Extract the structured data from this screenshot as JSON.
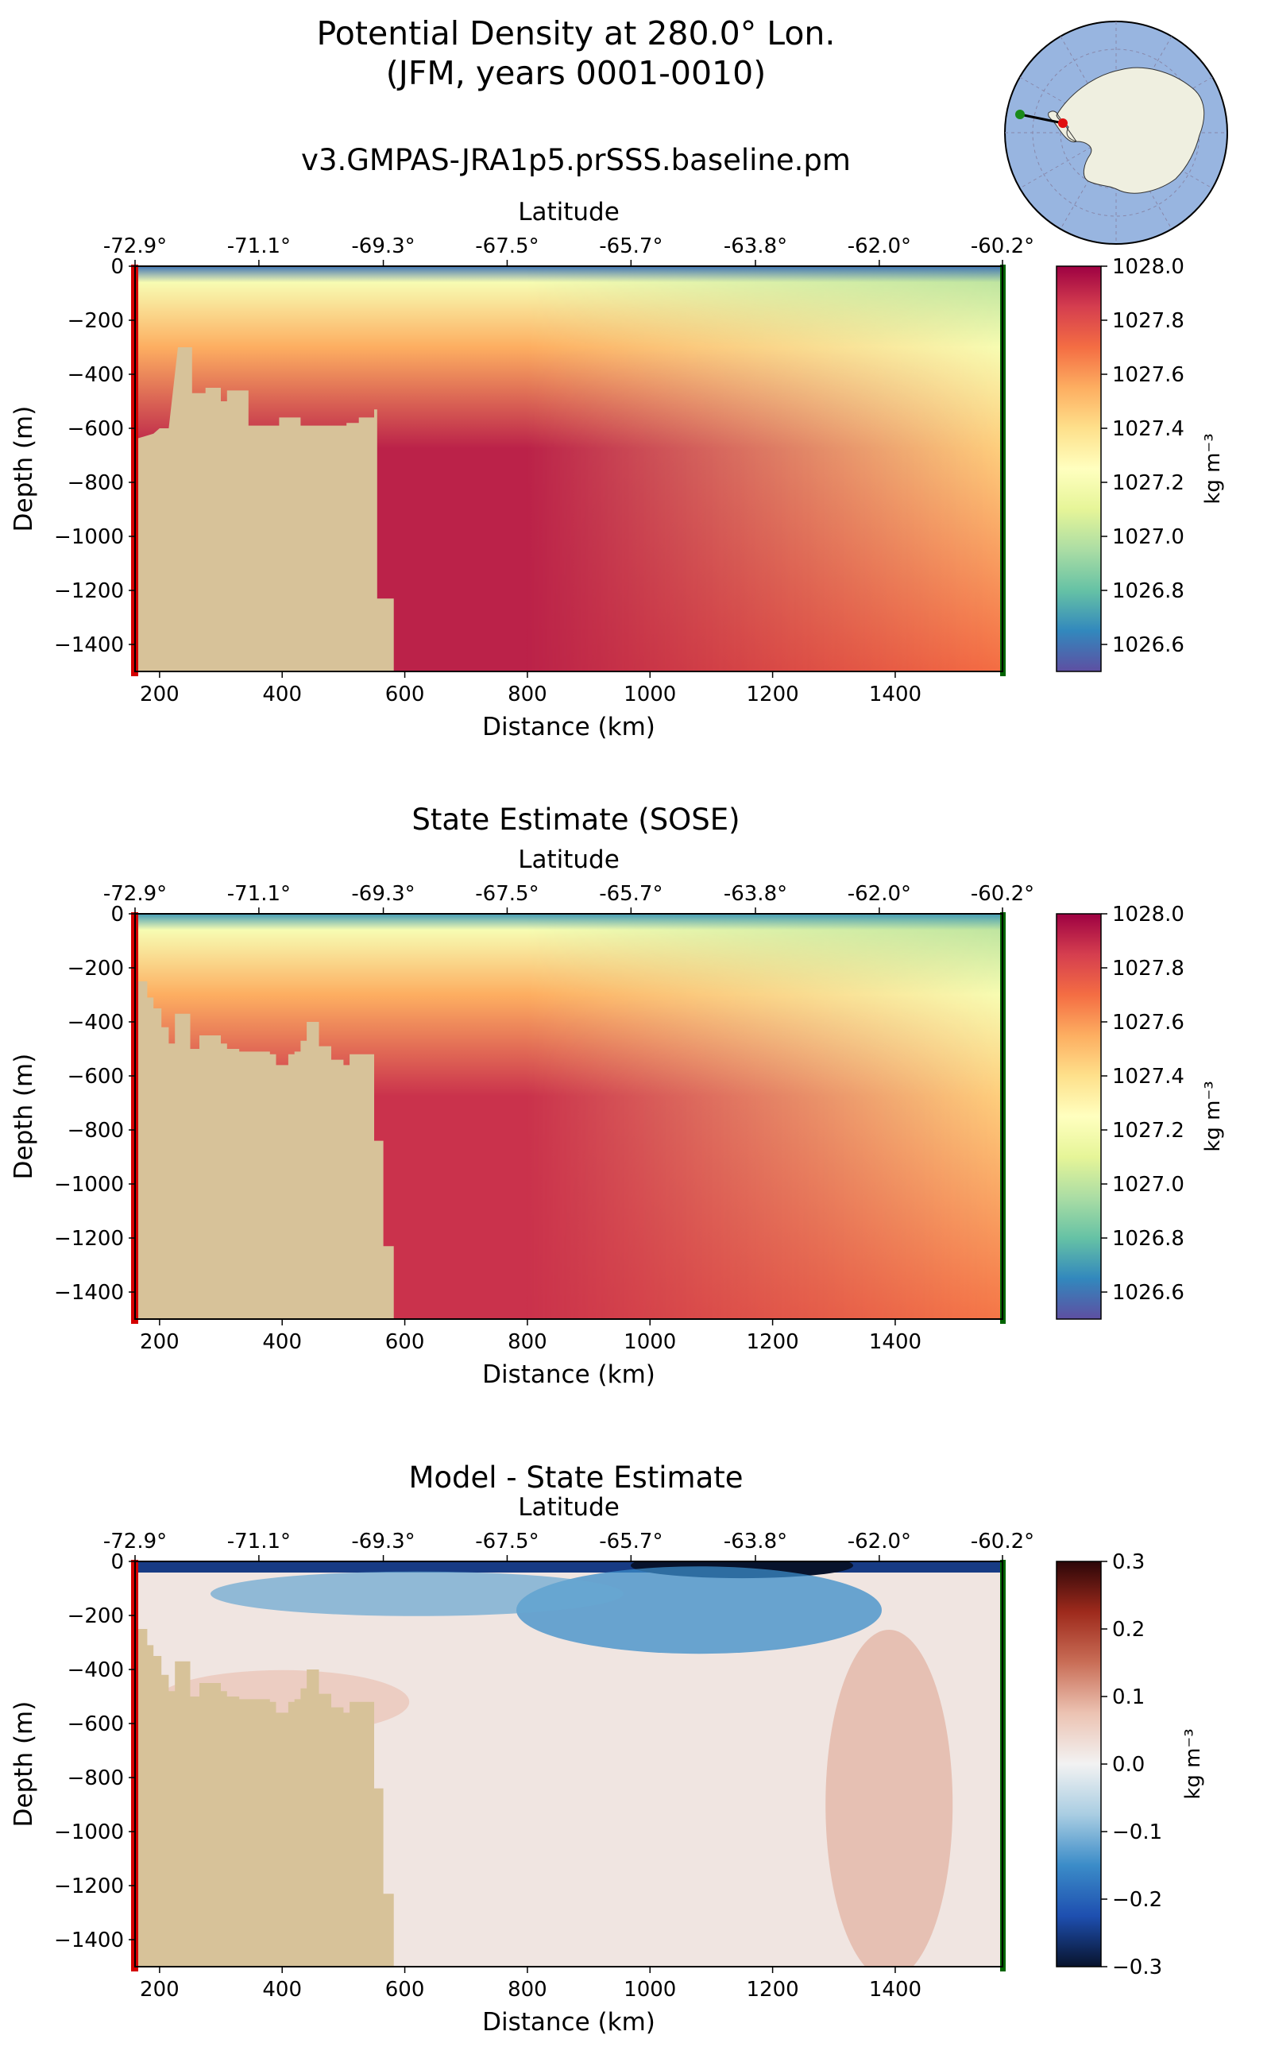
{
  "figure": {
    "title_line1": "Potential Density at 280.0° Lon.",
    "title_line2": "(JFM, years 0001-0010)"
  },
  "colors": {
    "land": "#d7c299",
    "start_marker": "#d40000",
    "end_marker": "#006400",
    "density_colormap": [
      "#5e4fa2",
      "#3288bd",
      "#66c2a5",
      "#abdda4",
      "#e6f598",
      "#ffffbf",
      "#fee08b",
      "#fdae61",
      "#f46d43",
      "#d53e4f",
      "#9e0142"
    ],
    "diff_colormap": [
      "#08132c",
      "#1e4fb0",
      "#3b8cc8",
      "#a9cde2",
      "#f2f2f2",
      "#ecc3b3",
      "#c96e57",
      "#9e2a1c",
      "#2c0608"
    ]
  },
  "inset_map": {
    "description_icon": "antarctica-polar-map-icon",
    "ocean_color": "#98b5e0",
    "land_color": "#efefe0"
  },
  "panels": [
    {
      "id": "model",
      "title": "v3.GMPAS-JRA1p5.prSSS.baseline.pm",
      "colormap": "density",
      "colorbar_label": "kg m⁻³",
      "colorbar_ticks": [
        "1028.0",
        "1027.8",
        "1027.6",
        "1027.4",
        "1027.2",
        "1027.0",
        "1026.8",
        "1026.6"
      ],
      "colorbar_range": [
        1026.5,
        1028.0
      ]
    },
    {
      "id": "obs",
      "title": "State Estimate (SOSE)",
      "colormap": "density",
      "colorbar_label": "kg m⁻³",
      "colorbar_ticks": [
        "1028.0",
        "1027.8",
        "1027.6",
        "1027.4",
        "1027.2",
        "1027.0",
        "1026.8",
        "1026.6"
      ],
      "colorbar_range": [
        1026.5,
        1028.0
      ]
    },
    {
      "id": "diff",
      "title": "Model - State Estimate",
      "colormap": "diff",
      "colorbar_label": "kg m⁻³",
      "colorbar_ticks": [
        "0.3",
        "0.2",
        "0.1",
        "0.0",
        "−0.1",
        "−0.2",
        "−0.3"
      ],
      "colorbar_range": [
        -0.3,
        0.3
      ]
    }
  ],
  "chart_data": {
    "type": "heatmap",
    "title": "Potential Density at 280.0° Lon. (JFM, years 0001-0010)",
    "xlabel": "Distance (km)",
    "ylabel": "Depth (m)",
    "top_xlabel": "Latitude",
    "xlim": [
      160,
      1575
    ],
    "ylim": [
      -1500,
      0
    ],
    "x_ticks": [
      "200",
      "400",
      "600",
      "800",
      "1000",
      "1200",
      "1400"
    ],
    "x_tick_values": [
      200,
      400,
      600,
      800,
      1000,
      1200,
      1400
    ],
    "y_ticks": [
      "0",
      "−200",
      "−400",
      "−600",
      "−800",
      "−1000",
      "−1200",
      "−1400"
    ],
    "y_tick_values": [
      0,
      -200,
      -400,
      -600,
      -800,
      -1000,
      -1200,
      -1400
    ],
    "lat_ticks": [
      "-72.9°",
      "-71.1°",
      "-69.3°",
      "-67.5°",
      "-65.7°",
      "-63.8°",
      "-62.0°",
      "-60.2°"
    ],
    "lat_tick_distances": [
      160,
      362,
      565,
      767,
      969,
      1172,
      1374,
      1575
    ],
    "bathymetry_model": [
      [
        160,
        -640
      ],
      [
        175,
        -630
      ],
      [
        190,
        -620
      ],
      [
        200,
        -600
      ],
      [
        215,
        -600
      ],
      [
        230,
        -300
      ],
      [
        253,
        -300
      ],
      [
        253,
        -470
      ],
      [
        275,
        -470
      ],
      [
        275,
        -450
      ],
      [
        300,
        -450
      ],
      [
        300,
        -500
      ],
      [
        310,
        -500
      ],
      [
        310,
        -460
      ],
      [
        345,
        -460
      ],
      [
        345,
        -590
      ],
      [
        395,
        -590
      ],
      [
        395,
        -560
      ],
      [
        430,
        -560
      ],
      [
        430,
        -590
      ],
      [
        505,
        -590
      ],
      [
        505,
        -580
      ],
      [
        525,
        -580
      ],
      [
        525,
        -560
      ],
      [
        550,
        -560
      ],
      [
        550,
        -530
      ],
      [
        555,
        -530
      ],
      [
        555,
        -1230
      ],
      [
        582,
        -1230
      ],
      [
        582,
        -1500
      ]
    ],
    "bathymetry_obs": [
      [
        160,
        -250
      ],
      [
        180,
        -250
      ],
      [
        180,
        -310
      ],
      [
        190,
        -310
      ],
      [
        190,
        -350
      ],
      [
        203,
        -350
      ],
      [
        203,
        -420
      ],
      [
        215,
        -420
      ],
      [
        215,
        -480
      ],
      [
        225,
        -480
      ],
      [
        225,
        -370
      ],
      [
        250,
        -370
      ],
      [
        250,
        -500
      ],
      [
        265,
        -500
      ],
      [
        265,
        -450
      ],
      [
        300,
        -450
      ],
      [
        300,
        -480
      ],
      [
        310,
        -480
      ],
      [
        310,
        -500
      ],
      [
        330,
        -500
      ],
      [
        330,
        -510
      ],
      [
        380,
        -510
      ],
      [
        380,
        -520
      ],
      [
        390,
        -520
      ],
      [
        390,
        -560
      ],
      [
        410,
        -560
      ],
      [
        410,
        -520
      ],
      [
        420,
        -520
      ],
      [
        420,
        -510
      ],
      [
        430,
        -510
      ],
      [
        430,
        -470
      ],
      [
        440,
        -470
      ],
      [
        440,
        -400
      ],
      [
        460,
        -400
      ],
      [
        460,
        -490
      ],
      [
        480,
        -490
      ],
      [
        480,
        -540
      ],
      [
        500,
        -540
      ],
      [
        500,
        -560
      ],
      [
        510,
        -560
      ],
      [
        510,
        -520
      ],
      [
        550,
        -520
      ],
      [
        550,
        -840
      ],
      [
        565,
        -840
      ],
      [
        565,
        -1230
      ],
      [
        582,
        -1230
      ],
      [
        582,
        -1500
      ]
    ],
    "series": [
      {
        "name": "v3.GMPAS-JRA1p5.prSSS.baseline.pm",
        "surface_value": 1026.6,
        "mixed_layer_value": 1027.2,
        "deep_value_shelf": 1027.92,
        "deep_value_offshore": 1027.7
      },
      {
        "name": "State Estimate (SOSE)",
        "surface_value": 1026.7,
        "mixed_layer_value": 1027.2,
        "deep_value_shelf": 1027.88,
        "deep_value_offshore": 1027.68
      },
      {
        "name": "Model - State Estimate",
        "surface_value": -0.25,
        "shallow_min": -0.3,
        "deep_max": 0.1
      }
    ]
  }
}
